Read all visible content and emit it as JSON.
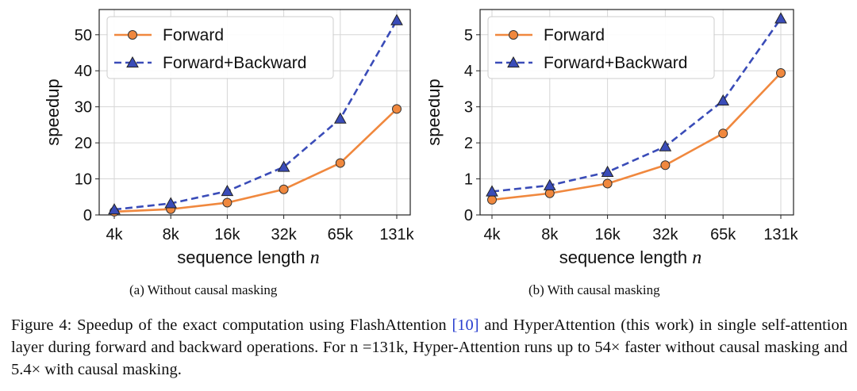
{
  "chart_data": [
    {
      "type": "line",
      "subcaption": "(a) Without causal masking",
      "categories": [
        "4k",
        "8k",
        "16k",
        "32k",
        "65k",
        "131k"
      ],
      "xlabel": "sequence length",
      "xlabel_var": "n",
      "ylabel": "speedup",
      "ylim": [
        0,
        57
      ],
      "yticks": [
        0,
        10,
        20,
        30,
        40,
        50
      ],
      "grid": true,
      "legend_position": "top-left",
      "series": [
        {
          "name": "Forward",
          "color": "#f0883e",
          "marker": "circle",
          "dash": "solid",
          "values": [
            0.9,
            1.6,
            3.4,
            7.1,
            14.4,
            29.4
          ]
        },
        {
          "name": "Forward+Backward",
          "color": "#3a4cb8",
          "marker": "triangle",
          "dash": "dashed",
          "values": [
            1.5,
            3.2,
            6.6,
            13.3,
            26.7,
            54.0
          ]
        }
      ]
    },
    {
      "type": "line",
      "subcaption": "(b) With causal masking",
      "categories": [
        "4k",
        "8k",
        "16k",
        "32k",
        "65k",
        "131k"
      ],
      "xlabel": "sequence length",
      "xlabel_var": "n",
      "ylabel": "speedup",
      "ylim": [
        0,
        5.7
      ],
      "yticks": [
        0,
        1,
        2,
        3,
        4,
        5
      ],
      "grid": true,
      "legend_position": "top-left",
      "series": [
        {
          "name": "Forward",
          "color": "#f0883e",
          "marker": "circle",
          "dash": "solid",
          "values": [
            0.42,
            0.6,
            0.87,
            1.38,
            2.26,
            3.94
          ]
        },
        {
          "name": "Forward+Backward",
          "color": "#3a4cb8",
          "marker": "triangle",
          "dash": "dashed",
          "values": [
            0.65,
            0.82,
            1.19,
            1.9,
            3.17,
            5.45
          ]
        }
      ]
    }
  ],
  "caption": {
    "prefix": "Figure 4: Speedup of the exact computation using FlashAttention ",
    "citation": "[10]",
    "suffix": " and HyperAttention (this work) in single self-attention layer during forward and backward operations. For n =131k, Hyper-Attention runs up to 54× faster without causal masking and 5.4× with causal masking."
  }
}
